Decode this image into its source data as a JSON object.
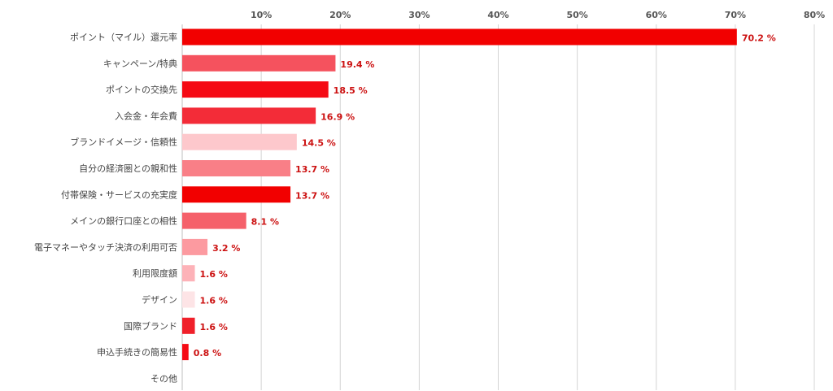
{
  "chart_data": {
    "type": "bar",
    "orientation": "horizontal",
    "categories": [
      "ポイント（マイル）還元率",
      "キャンペーン/特典",
      "ポイントの交換先",
      "入会金・年会費",
      "ブランドイメージ・信頼性",
      "自分の経済圏との親和性",
      "付帯保険・サービスの充実度",
      "メインの銀行口座との相性",
      "電子マネーやタッチ決済の利用可否",
      "利用限度額",
      "デザイン",
      "国際ブランド",
      "申込手続きの簡易性",
      "その他"
    ],
    "values": [
      70.2,
      19.4,
      18.5,
      16.9,
      14.5,
      13.7,
      13.7,
      8.1,
      3.2,
      1.6,
      1.6,
      1.6,
      0.8,
      0
    ],
    "value_labels": [
      "70.2 %",
      "19.4 %",
      "18.5 %",
      "16.9 %",
      "14.5 %",
      "13.7 %",
      "13.7 %",
      "8.1 %",
      "3.2 %",
      "1.6 %",
      "1.6 %",
      "1.6 %",
      "0.8 %",
      ""
    ],
    "colors": [
      "#f20000",
      "#f5525e",
      "#f50a14",
      "#f32c38",
      "#fdc8cc",
      "#f97f87",
      "#f20000",
      "#f5606a",
      "#fc9aa0",
      "#fdb2b8",
      "#fde4e6",
      "#f0202a",
      "#f50a14",
      "#ffffff"
    ],
    "xlim": [
      0,
      80
    ],
    "xticks": [
      10,
      20,
      30,
      40,
      50,
      60,
      70,
      80
    ],
    "xtick_labels": [
      "10%",
      "20%",
      "30%",
      "40%",
      "50%",
      "60%",
      "70%",
      "80%"
    ],
    "xaxis_position": "top",
    "grid": true,
    "title": "",
    "xlabel": "",
    "ylabel": ""
  }
}
